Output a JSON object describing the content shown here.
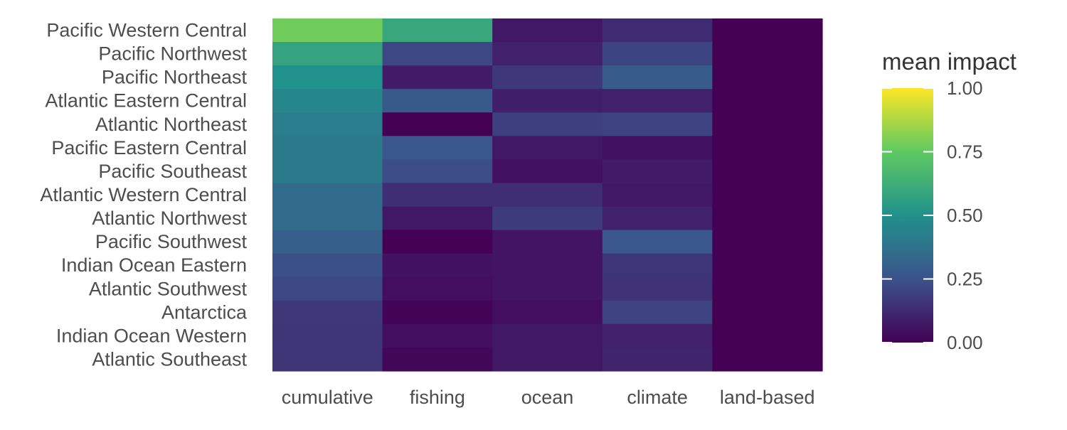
{
  "chart_data": {
    "type": "heatmap",
    "title": "",
    "xlabel": "",
    "ylabel": "",
    "x_categories": [
      "cumulative",
      "fishing",
      "ocean",
      "climate",
      "land-based"
    ],
    "y_categories": [
      "Pacific Western Central",
      "Pacific Northwest",
      "Pacific Northeast",
      "Atlantic Eastern Central",
      "Atlantic Northeast",
      "Pacific Eastern Central",
      "Pacific Southeast",
      "Atlantic Western Central",
      "Atlantic Northwest",
      "Pacific Southwest",
      "Indian Ocean Eastern",
      "Atlantic Southwest",
      "Antarctica",
      "Indian Ocean Western",
      "Atlantic Southeast"
    ],
    "values": [
      [
        0.78,
        0.6,
        0.07,
        0.13,
        0.0
      ],
      [
        0.58,
        0.22,
        0.1,
        0.21,
        0.0
      ],
      [
        0.5,
        0.08,
        0.17,
        0.29,
        0.0
      ],
      [
        0.46,
        0.28,
        0.09,
        0.1,
        0.0
      ],
      [
        0.42,
        0.0,
        0.19,
        0.2,
        0.0
      ],
      [
        0.41,
        0.27,
        0.07,
        0.05,
        0.0
      ],
      [
        0.41,
        0.23,
        0.05,
        0.08,
        0.0
      ],
      [
        0.35,
        0.14,
        0.14,
        0.07,
        0.0
      ],
      [
        0.35,
        0.07,
        0.18,
        0.1,
        0.0
      ],
      [
        0.3,
        0.0,
        0.06,
        0.27,
        0.0
      ],
      [
        0.24,
        0.05,
        0.06,
        0.16,
        0.0
      ],
      [
        0.22,
        0.04,
        0.06,
        0.15,
        0.0
      ],
      [
        0.17,
        0.01,
        0.04,
        0.2,
        0.0
      ],
      [
        0.16,
        0.04,
        0.07,
        0.1,
        0.0
      ],
      [
        0.16,
        0.02,
        0.07,
        0.11,
        0.0
      ]
    ],
    "legend": {
      "title": "mean impact",
      "placement": "right",
      "range": [
        0,
        1
      ],
      "ticks": [
        "0.00",
        "0.25",
        "0.50",
        "0.75",
        "1.00"
      ]
    },
    "colormap": [
      "#440154",
      "#3b528b",
      "#21918c",
      "#5ec962",
      "#fde725"
    ],
    "grid": false
  }
}
